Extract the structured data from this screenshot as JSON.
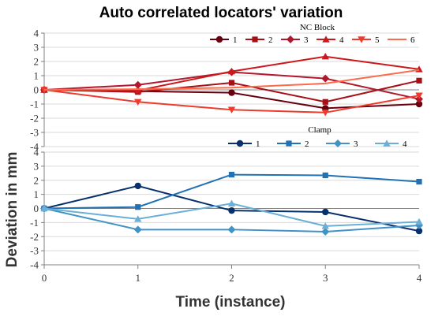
{
  "chart_data": {
    "type": "line",
    "title": "Auto correlated locators' variation",
    "xlabel": "Time (instance)",
    "ylabel": "Deviation in mm",
    "x": [
      0,
      1,
      2,
      3,
      4
    ],
    "xlim": [
      0,
      4
    ],
    "grid": true,
    "panels": [
      {
        "legend_title": "NC Block",
        "ylim": [
          -4,
          4
        ],
        "yticks": [
          -4,
          -3,
          -2,
          -1,
          0,
          1,
          2,
          3,
          4
        ],
        "series": [
          {
            "name": "1",
            "marker": "circle",
            "color": "#67000d",
            "values": [
              0,
              -0.1,
              -0.2,
              -1.3,
              -1.0
            ]
          },
          {
            "name": "2",
            "marker": "square",
            "color": "#a50f15",
            "values": [
              0,
              -0.15,
              0.5,
              -0.85,
              0.65
            ]
          },
          {
            "name": "3",
            "marker": "diamond",
            "color": "#b2182b",
            "values": [
              0,
              0.35,
              1.25,
              0.8,
              -0.65
            ]
          },
          {
            "name": "4",
            "marker": "triangle",
            "color": "#cb181d",
            "values": [
              0,
              -0.05,
              1.3,
              2.35,
              1.45
            ]
          },
          {
            "name": "5",
            "marker": "invtriangle",
            "color": "#ef3b2c",
            "values": [
              0,
              -0.85,
              -1.4,
              -1.6,
              -0.4
            ]
          },
          {
            "name": "6",
            "marker": "none",
            "color": "#fb6a4a",
            "values": [
              0,
              0.05,
              0.15,
              0.45,
              1.4
            ]
          }
        ]
      },
      {
        "legend_title": "Clamp",
        "ylim": [
          -4,
          4
        ],
        "yticks": [
          -4,
          -3,
          -2,
          -1,
          0,
          1,
          2,
          3,
          4
        ],
        "series": [
          {
            "name": "1",
            "marker": "circle",
            "color": "#08306b",
            "values": [
              0,
              1.6,
              -0.15,
              -0.25,
              -1.6
            ]
          },
          {
            "name": "2",
            "marker": "square",
            "color": "#2171b5",
            "values": [
              0,
              0.1,
              2.4,
              2.35,
              1.9
            ]
          },
          {
            "name": "3",
            "marker": "diamond",
            "color": "#4292c6",
            "values": [
              0,
              -1.5,
              -1.5,
              -1.65,
              -1.2
            ]
          },
          {
            "name": "4",
            "marker": "triangle",
            "color": "#6baed6",
            "values": [
              0,
              -0.75,
              0.35,
              -1.25,
              -0.95
            ]
          }
        ]
      }
    ]
  }
}
